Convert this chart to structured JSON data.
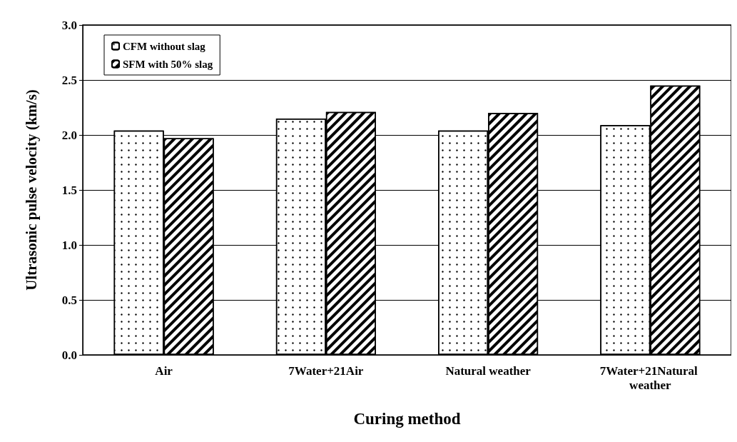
{
  "chart_data": {
    "type": "bar",
    "xlabel": "Curing method",
    "ylabel": "Ultrasonic pulse velocity (km/s)",
    "categories": [
      "Air",
      "7Water+21Air",
      "Natural weather",
      "7Water+21Natural weather"
    ],
    "series": [
      {
        "name": "CFM without slag",
        "color": "#ffffff",
        "values": [
          2.04,
          2.15,
          2.04,
          2.09
        ]
      },
      {
        "name": "SFM with 50% slag",
        "color": "#ffffff",
        "values": [
          1.97,
          2.21,
          2.2,
          2.45
        ]
      }
    ],
    "ylim": [
      0,
      3
    ],
    "yticks": [
      {
        "value": 0,
        "label": "0.0"
      },
      0.5,
      {
        "value": 1,
        "label": "1.0"
      },
      1.5,
      {
        "value": 2,
        "label": "2.0"
      },
      2.5,
      {
        "value": 3,
        "label": "3.0"
      }
    ],
    "grid": "y",
    "legend": "top left"
  }
}
